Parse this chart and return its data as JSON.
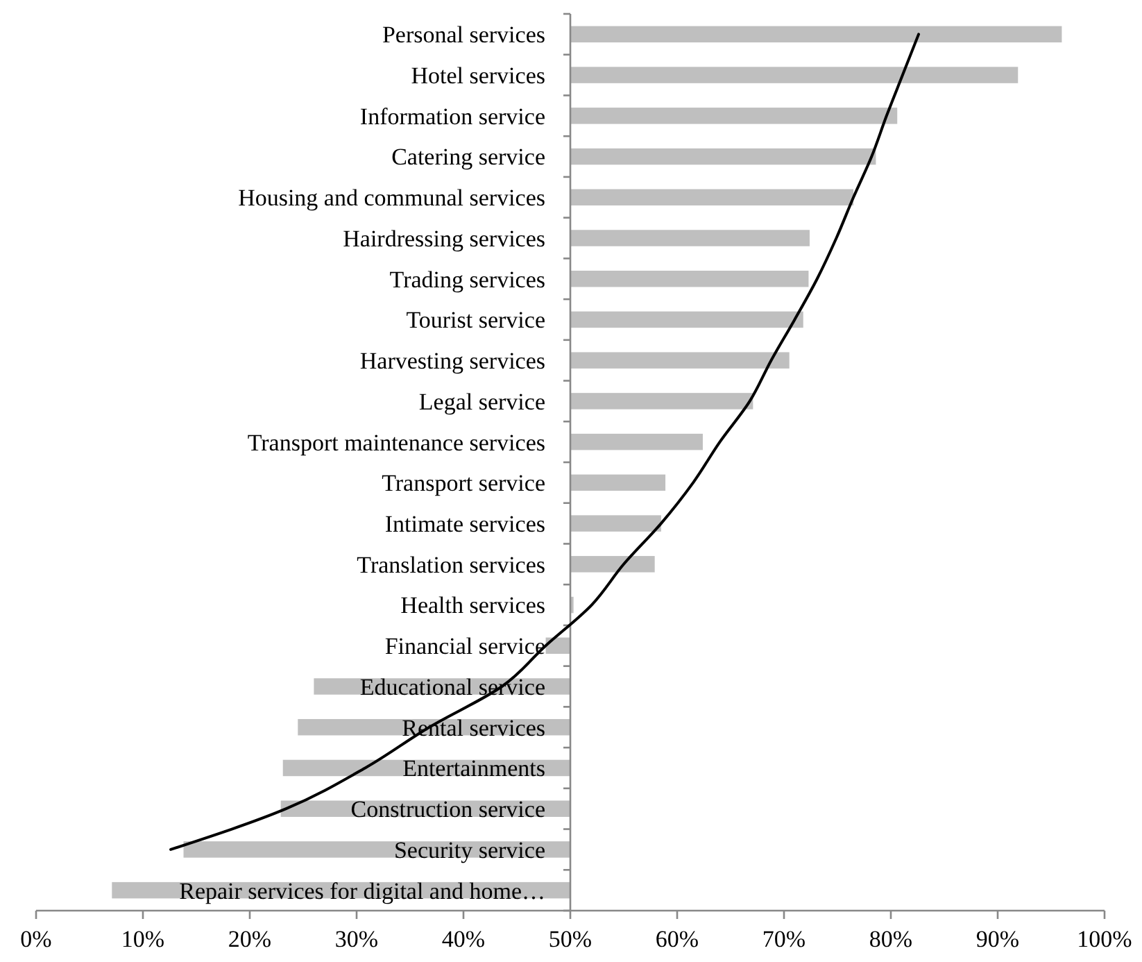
{
  "chart_data": {
    "type": "bar",
    "orientation": "horizontal",
    "categories": [
      "Personal services",
      "Hotel services",
      "Information service",
      "Catering service",
      "Housing and communal services",
      "Hairdressing services",
      "Trading services",
      "Tourist service",
      "Harvesting services",
      "Legal service",
      "Transport maintenance services",
      "Transport service",
      "Intimate services",
      "Translation services",
      "Health services",
      "Financial service",
      "Educational service",
      "Rental services",
      "Entertainments",
      "Construction service",
      "Security service",
      "Repair services for digital and home…"
    ],
    "series": [
      {
        "color": "#bfbfbf",
        "base": [
          50,
          50,
          50,
          50,
          50,
          50,
          50,
          50,
          50,
          50,
          50,
          50,
          50,
          50,
          50,
          50,
          50,
          50,
          50,
          50,
          50,
          50
        ],
        "values": [
          46.0,
          41.9,
          30.6,
          28.6,
          26.5,
          22.4,
          22.3,
          21.8,
          20.5,
          17.1,
          12.4,
          8.9,
          8.5,
          7.9,
          0.3,
          -2.3,
          -24.0,
          -25.5,
          -26.9,
          -27.1,
          -36.2,
          -42.9
        ]
      },
      {
        "type": "line",
        "color": "#000000",
        "values": [
          82.6,
          81.1,
          79.6,
          78.2,
          76.5,
          74.9,
          73.1,
          71.0,
          68.8,
          66.8,
          64.0,
          61.5,
          58.5,
          55.0,
          52.0,
          47.7,
          43.6,
          36.8,
          30.8,
          23.4,
          12.6,
          null
        ]
      }
    ],
    "xlim": [
      0,
      100
    ],
    "xticks": [
      {
        "value": 0,
        "label": "0%"
      },
      {
        "value": 10,
        "label": "10%"
      },
      {
        "value": 20,
        "label": "20%"
      },
      {
        "value": 30,
        "label": "30%"
      },
      {
        "value": 40,
        "label": "40%"
      },
      {
        "value": 50,
        "label": "50%"
      },
      {
        "value": 60,
        "label": "60%"
      },
      {
        "value": 70,
        "label": "70%"
      },
      {
        "value": 80,
        "label": "80%"
      },
      {
        "value": 90,
        "label": "90%"
      },
      {
        "value": 100,
        "label": "100%"
      }
    ]
  }
}
